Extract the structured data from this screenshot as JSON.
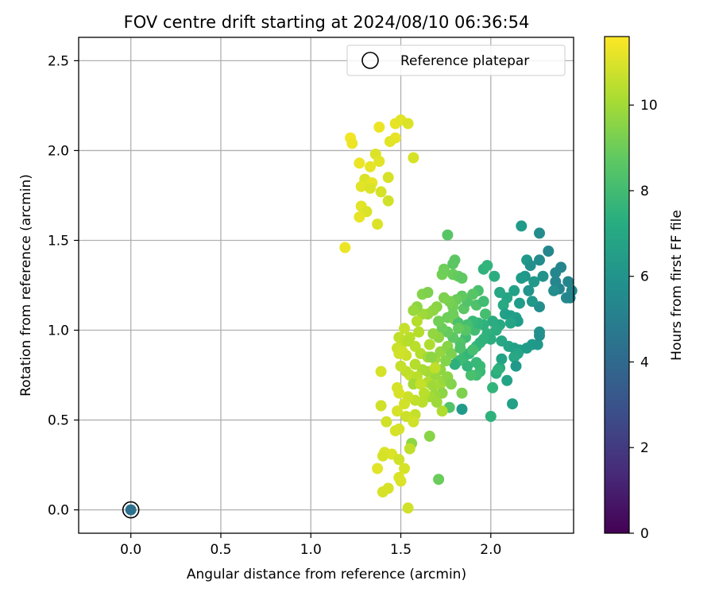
{
  "chart_data": {
    "type": "scatter",
    "title": "FOV centre drift starting at 2024/08/10 06:36:54",
    "xlabel": "Angular distance from reference (arcmin)",
    "ylabel": "Rotation from reference (arcmin)",
    "xlim": [
      -0.29,
      2.46
    ],
    "ylim": [
      -0.13,
      2.63
    ],
    "xticks": [
      0.0,
      0.5,
      1.0,
      1.5,
      2.0
    ],
    "xtick_labels": [
      "0.0",
      "0.5",
      "1.0",
      "1.5",
      "2.0"
    ],
    "yticks": [
      0.0,
      0.5,
      1.0,
      1.5,
      2.0,
      2.5
    ],
    "ytick_labels": [
      "0.0",
      "0.5",
      "1.0",
      "1.5",
      "2.0",
      "2.5"
    ],
    "grid": true,
    "legend": {
      "position": "top-right",
      "entries": [
        "Reference platepar"
      ]
    },
    "colorbar": {
      "label": "Hours from first FF file",
      "range": [
        0,
        11.6
      ],
      "ticks": [
        0,
        2,
        4,
        6,
        8,
        10
      ],
      "tick_labels": [
        "0",
        "2",
        "4",
        "6",
        "8",
        "10"
      ],
      "colormap": "viridis"
    },
    "reference_point": {
      "x": 0.0,
      "y": 0.0,
      "label": "Reference platepar",
      "color_value": 4.3
    },
    "points": [
      [
        1.38,
        2.13,
        11.3
      ],
      [
        1.47,
        2.15,
        11.2
      ],
      [
        1.5,
        2.17,
        11.1
      ],
      [
        1.54,
        2.15,
        11.0
      ],
      [
        1.22,
        2.07,
        11.4
      ],
      [
        1.23,
        2.04,
        11.3
      ],
      [
        1.47,
        2.07,
        11.2
      ],
      [
        1.44,
        2.05,
        11.1
      ],
      [
        1.36,
        1.98,
        11.0
      ],
      [
        1.57,
        1.96,
        10.9
      ],
      [
        1.27,
        1.93,
        11.3
      ],
      [
        1.33,
        1.91,
        11.2
      ],
      [
        1.38,
        1.94,
        11.1
      ],
      [
        1.3,
        1.84,
        11.0
      ],
      [
        1.34,
        1.82,
        11.2
      ],
      [
        1.43,
        1.85,
        10.9
      ],
      [
        1.28,
        1.8,
        11.1
      ],
      [
        1.33,
        1.79,
        11.0
      ],
      [
        1.39,
        1.77,
        10.9
      ],
      [
        1.43,
        1.72,
        10.8
      ],
      [
        1.28,
        1.69,
        11.1
      ],
      [
        1.31,
        1.66,
        11.0
      ],
      [
        1.27,
        1.63,
        11.2
      ],
      [
        1.37,
        1.59,
        11.0
      ],
      [
        1.19,
        1.46,
        11.3
      ],
      [
        2.17,
        1.58,
        6.3
      ],
      [
        2.27,
        1.54,
        5.6
      ],
      [
        2.32,
        1.44,
        5.4
      ],
      [
        2.27,
        1.39,
        5.6
      ],
      [
        2.2,
        1.39,
        6.2
      ],
      [
        2.22,
        1.36,
        5.8
      ],
      [
        2.39,
        1.35,
        5.3
      ],
      [
        2.36,
        1.32,
        5.4
      ],
      [
        2.43,
        1.27,
        5.3
      ],
      [
        2.45,
        1.22,
        5.4
      ],
      [
        2.38,
        1.23,
        5.2
      ],
      [
        2.36,
        1.27,
        5.4
      ],
      [
        2.42,
        1.18,
        5.5
      ],
      [
        2.44,
        1.18,
        5.3
      ],
      [
        2.35,
        1.22,
        5.7
      ],
      [
        2.29,
        1.3,
        5.9
      ],
      [
        2.24,
        1.27,
        6.2
      ],
      [
        2.19,
        1.3,
        6.1
      ],
      [
        2.17,
        1.29,
        6.3
      ],
      [
        2.21,
        1.22,
        6.0
      ],
      [
        2.27,
        1.13,
        5.7
      ],
      [
        2.23,
        1.16,
        6.2
      ],
      [
        2.16,
        1.15,
        6.4
      ],
      [
        2.13,
        1.22,
        6.6
      ],
      [
        2.09,
        1.18,
        6.8
      ],
      [
        2.05,
        1.21,
        6.9
      ],
      [
        2.02,
        1.3,
        7.2
      ],
      [
        1.96,
        1.34,
        7.5
      ],
      [
        1.98,
        1.36,
        7.6
      ],
      [
        2.07,
        1.14,
        7.0
      ],
      [
        2.08,
        1.09,
        6.6
      ],
      [
        2.11,
        1.08,
        6.5
      ],
      [
        2.14,
        1.07,
        6.6
      ],
      [
        2.15,
        1.05,
        6.4
      ],
      [
        2.11,
        1.04,
        6.8
      ],
      [
        2.05,
        1.03,
        7.0
      ],
      [
        2.01,
        1.05,
        7.1
      ],
      [
        2.03,
        1.0,
        7.2
      ],
      [
        1.98,
        0.98,
        7.4
      ],
      [
        2.0,
        0.95,
        7.2
      ],
      [
        2.06,
        0.94,
        6.9
      ],
      [
        2.1,
        0.91,
        6.8
      ],
      [
        2.13,
        0.9,
        6.6
      ],
      [
        2.16,
        0.89,
        6.5
      ],
      [
        2.2,
        0.9,
        6.4
      ],
      [
        2.23,
        0.92,
        6.3
      ],
      [
        2.26,
        0.92,
        6.2
      ],
      [
        2.27,
        0.99,
        5.9
      ],
      [
        2.27,
        0.97,
        5.8
      ],
      [
        2.15,
        0.87,
        6.8
      ],
      [
        2.13,
        0.85,
        6.9
      ],
      [
        2.06,
        0.84,
        6.7
      ],
      [
        2.14,
        0.8,
        6.2
      ],
      [
        2.05,
        0.79,
        7.0
      ],
      [
        2.03,
        0.76,
        7.2
      ],
      [
        2.04,
        0.78,
        7.4
      ],
      [
        2.09,
        0.72,
        6.7
      ],
      [
        2.01,
        0.68,
        7.6
      ],
      [
        2.12,
        0.59,
        6.6
      ],
      [
        2.0,
        0.52,
        7.4
      ],
      [
        1.84,
        0.56,
        6.3
      ],
      [
        1.77,
        0.57,
        8.4
      ],
      [
        1.94,
        0.77,
        7.8
      ],
      [
        1.92,
        0.75,
        8.0
      ],
      [
        1.89,
        0.75,
        8.2
      ],
      [
        1.94,
        0.8,
        7.9
      ],
      [
        1.87,
        0.8,
        7.6
      ],
      [
        1.92,
        0.82,
        7.8
      ],
      [
        1.82,
        0.83,
        8.0
      ],
      [
        1.85,
        0.85,
        7.9
      ],
      [
        1.8,
        0.81,
        7.3
      ],
      [
        1.88,
        0.87,
        7.7
      ],
      [
        1.92,
        0.91,
        7.8
      ],
      [
        1.94,
        0.93,
        7.6
      ],
      [
        1.96,
        0.95,
        7.5
      ],
      [
        1.91,
        1.0,
        8.0
      ],
      [
        1.96,
        1.03,
        7.4
      ],
      [
        1.93,
        1.04,
        7.6
      ],
      [
        1.9,
        1.05,
        7.8
      ],
      [
        1.87,
        1.03,
        8.1
      ],
      [
        1.86,
        0.96,
        8.0
      ],
      [
        1.83,
        0.93,
        8.4
      ],
      [
        1.79,
        0.96,
        8.6
      ],
      [
        1.76,
        0.99,
        8.8
      ],
      [
        1.73,
        1.01,
        8.9
      ],
      [
        1.71,
        1.05,
        9.1
      ],
      [
        1.76,
        1.07,
        9.0
      ],
      [
        1.8,
        1.06,
        9.2
      ],
      [
        1.85,
        1.12,
        8.6
      ],
      [
        1.87,
        1.16,
        8.4
      ],
      [
        1.92,
        1.14,
        8.3
      ],
      [
        1.97,
        1.09,
        8.1
      ],
      [
        1.96,
        1.16,
        8.0
      ],
      [
        1.93,
        1.22,
        8.2
      ],
      [
        1.9,
        1.2,
        8.5
      ],
      [
        1.84,
        1.19,
        8.7
      ],
      [
        1.81,
        1.17,
        8.9
      ],
      [
        1.79,
        1.13,
        9.1
      ],
      [
        1.77,
        1.16,
        9.2
      ],
      [
        1.74,
        1.18,
        9.3
      ],
      [
        1.7,
        1.13,
        9.5
      ],
      [
        1.68,
        1.11,
        9.6
      ],
      [
        1.65,
        1.09,
        9.7
      ],
      [
        1.62,
        1.09,
        9.9
      ],
      [
        1.59,
        1.13,
        9.6
      ],
      [
        1.57,
        1.11,
        9.8
      ],
      [
        1.62,
        1.2,
        9.4
      ],
      [
        1.65,
        1.21,
        9.3
      ],
      [
        1.73,
        1.31,
        9.1
      ],
      [
        1.79,
        1.31,
        8.9
      ],
      [
        1.82,
        1.3,
        8.8
      ],
      [
        1.74,
        1.34,
        9.0
      ],
      [
        1.84,
        1.29,
        8.7
      ],
      [
        1.8,
        1.39,
        8.6
      ],
      [
        1.79,
        1.37,
        8.6
      ],
      [
        1.76,
        1.53,
        8.5
      ],
      [
        1.59,
        1.05,
        10.3
      ],
      [
        1.6,
        0.99,
        10.3
      ],
      [
        1.55,
        0.96,
        10.4
      ],
      [
        1.51,
        0.93,
        10.5
      ],
      [
        1.52,
        1.01,
        10.6
      ],
      [
        1.49,
        0.96,
        10.5
      ],
      [
        1.58,
        0.91,
        10.4
      ],
      [
        1.61,
        0.87,
        10.3
      ],
      [
        1.66,
        0.92,
        10.2
      ],
      [
        1.65,
        0.85,
        10.0
      ],
      [
        1.69,
        0.84,
        9.9
      ],
      [
        1.72,
        0.88,
        9.7
      ],
      [
        1.76,
        0.91,
        9.5
      ],
      [
        1.78,
        0.87,
        9.3
      ],
      [
        1.75,
        0.83,
        9.4
      ],
      [
        1.72,
        0.78,
        9.6
      ],
      [
        1.69,
        0.75,
        9.8
      ],
      [
        1.65,
        0.77,
        10.0
      ],
      [
        1.62,
        0.78,
        10.1
      ],
      [
        1.58,
        0.81,
        10.3
      ],
      [
        1.55,
        0.75,
        10.6
      ],
      [
        1.53,
        0.77,
        10.5
      ],
      [
        1.5,
        0.8,
        10.6
      ],
      [
        1.51,
        0.88,
        10.8
      ],
      [
        1.53,
        0.86,
        10.7
      ],
      [
        1.48,
        0.9,
        10.7
      ],
      [
        1.49,
        0.87,
        10.8
      ],
      [
        1.59,
        0.74,
        10.4
      ],
      [
        1.65,
        0.71,
        10.2
      ],
      [
        1.68,
        0.69,
        9.9
      ],
      [
        1.72,
        0.7,
        10.0
      ],
      [
        1.74,
        0.72,
        9.8
      ],
      [
        1.76,
        0.74,
        9.6
      ],
      [
        1.78,
        0.7,
        9.4
      ],
      [
        1.73,
        0.65,
        9.6
      ],
      [
        1.69,
        0.64,
        9.8
      ],
      [
        1.66,
        0.63,
        10.0
      ],
      [
        1.62,
        0.6,
        10.4
      ],
      [
        1.58,
        0.61,
        10.5
      ],
      [
        1.54,
        0.63,
        10.7
      ],
      [
        1.52,
        0.59,
        10.8
      ],
      [
        1.49,
        0.65,
        10.9
      ],
      [
        1.48,
        0.68,
        10.9
      ],
      [
        1.39,
        0.77,
        10.9
      ],
      [
        1.58,
        0.53,
        10.6
      ],
      [
        1.53,
        0.52,
        10.7
      ],
      [
        1.57,
        0.49,
        10.8
      ],
      [
        1.48,
        0.55,
        10.9
      ],
      [
        1.42,
        0.49,
        10.8
      ],
      [
        1.39,
        0.58,
        10.8
      ],
      [
        1.49,
        0.45,
        10.9
      ],
      [
        1.47,
        0.44,
        10.9
      ],
      [
        1.66,
        0.41,
        9.5
      ],
      [
        1.71,
        0.17,
        8.9
      ],
      [
        1.56,
        0.37,
        9.6
      ],
      [
        1.55,
        0.34,
        10.5
      ],
      [
        1.45,
        0.31,
        11.0
      ],
      [
        1.41,
        0.32,
        11.0
      ],
      [
        1.4,
        0.3,
        10.9
      ],
      [
        1.49,
        0.28,
        10.8
      ],
      [
        1.52,
        0.23,
        10.9
      ],
      [
        1.37,
        0.23,
        11.1
      ],
      [
        1.49,
        0.18,
        11.0
      ],
      [
        1.5,
        0.16,
        11.0
      ],
      [
        1.43,
        0.12,
        10.9
      ],
      [
        1.4,
        0.1,
        10.9
      ],
      [
        1.54,
        0.01,
        10.8
      ],
      [
        1.73,
        0.55,
        10.2
      ],
      [
        1.69,
        0.79,
        10.5
      ],
      [
        1.67,
        0.85,
        9.6
      ],
      [
        1.57,
        0.7,
        10.0
      ],
      [
        1.54,
        0.94,
        10.3
      ],
      [
        1.61,
        0.7,
        10.6
      ],
      [
        1.63,
        0.65,
        10.4
      ],
      [
        1.9,
        0.89,
        8.1
      ],
      [
        1.83,
        0.9,
        8.3
      ],
      [
        1.86,
        1.0,
        8.5
      ],
      [
        1.82,
        1.04,
        8.2
      ],
      [
        1.79,
        1.09,
        9.0
      ],
      [
        1.82,
        1.01,
        8.8
      ],
      [
        1.71,
        0.96,
        9.6
      ],
      [
        1.68,
        0.98,
        9.7
      ],
      [
        1.84,
        0.65,
        9.3
      ],
      [
        1.7,
        0.6,
        9.9
      ]
    ]
  }
}
